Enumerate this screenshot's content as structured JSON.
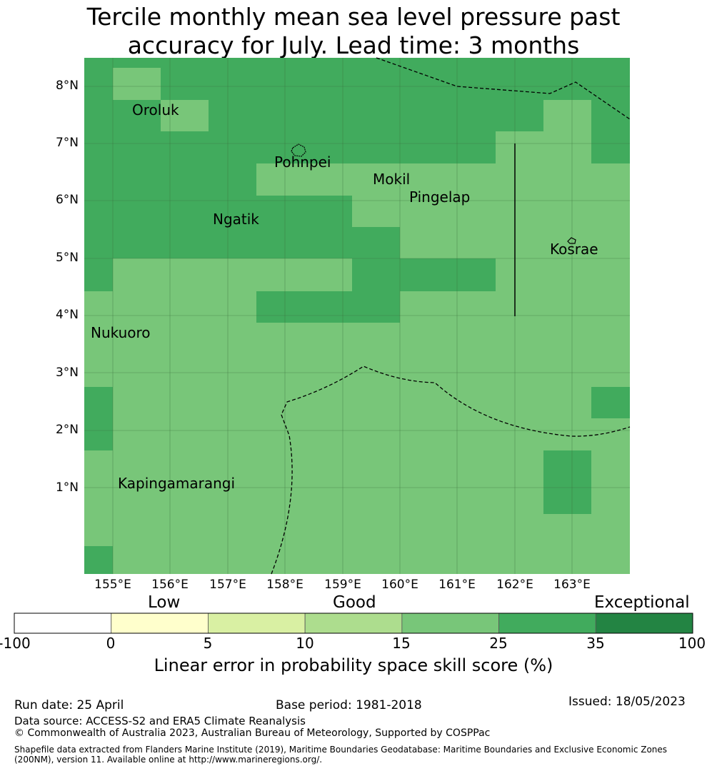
{
  "title_line1": "Tercile monthly mean sea level pressure past",
  "title_line2": "accuracy for July. Lead time: 3 months",
  "map": {
    "lat_labels": [
      "8°N",
      "7°N",
      "6°N",
      "5°N",
      "4°N",
      "3°N",
      "2°N",
      "1°N"
    ],
    "lon_labels": [
      "155°E",
      "156°E",
      "157°E",
      "158°E",
      "159°E",
      "160°E",
      "161°E",
      "162°E",
      "163°E"
    ],
    "places": [
      "Oroluk",
      "Pohnpei",
      "Mokil",
      "Pingelap",
      "Ngatik",
      "Kosrae",
      "Nukuoro",
      "Kapingamarangi"
    ],
    "cell_colors": {
      "good": "#78c679",
      "very_good": "#41ab5d"
    }
  },
  "colorbar": {
    "categories": [
      "Low",
      "Good",
      "Exceptional"
    ],
    "ticks": [
      "-100",
      "0",
      "5",
      "10",
      "15",
      "25",
      "35",
      "100"
    ],
    "colors": [
      "#ffffff",
      "#ffffcc",
      "#d9f0a3",
      "#addd8e",
      "#78c679",
      "#41ab5d",
      "#238443"
    ],
    "title": "Linear error in probability space skill score (%)"
  },
  "footer": {
    "run_date": "Run date: 25 April",
    "base_period": "Base period: 1981-2018",
    "issued": "Issued: 18/05/2023",
    "data_source": "Data source: ACCESS-S2 and ERA5 Climate Reanalysis",
    "copyright": "© Commonwealth of Australia 2023, Australian Bureau of Meteorology, Supported by COSPPac",
    "shapefile_line1": "Shapefile data extracted from Flanders Marine Institute (2019), Maritime Boundaries Geodatabase: Maritime Boundaries and Exclusive Economic Zones",
    "shapefile_line2": "(200NM), version 11. Available online at http://www.marineregions.org/."
  }
}
